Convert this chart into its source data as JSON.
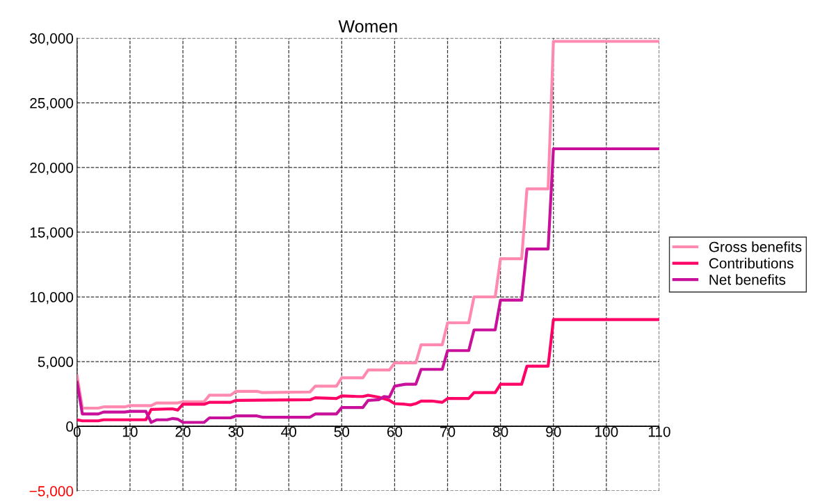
{
  "chart_data": {
    "type": "line",
    "title": "Women",
    "xlim": [
      0,
      110
    ],
    "xticks": [
      0,
      10,
      20,
      30,
      40,
      50,
      60,
      70,
      80,
      90,
      100,
      110
    ],
    "ylim": [
      -5000,
      30000
    ],
    "yticks": [
      {
        "value": -5000,
        "label": "−5,000"
      },
      {
        "value": 0,
        "label": "0"
      },
      {
        "value": 5000,
        "label": "5,000"
      },
      {
        "value": 10000,
        "label": "10,000"
      },
      {
        "value": 15000,
        "label": "15,000"
      },
      {
        "value": 20000,
        "label": "20,000"
      },
      {
        "value": 25000,
        "label": "25,000"
      },
      {
        "value": 30000,
        "label": "30,000"
      }
    ],
    "grid": true,
    "legend": "right",
    "marker": "none",
    "line_style": "solid",
    "series": [
      {
        "name": "Gross benefits",
        "color": "#ff8ab0",
        "x": [
          0,
          1,
          4,
          5,
          9,
          10,
          14,
          15,
          19,
          20,
          24,
          25,
          29,
          30,
          34,
          35,
          44,
          45,
          49,
          50,
          54,
          55,
          59,
          60,
          64,
          65,
          69,
          70,
          74,
          75,
          79,
          80,
          84,
          85,
          89,
          90,
          110
        ],
        "values": [
          3900,
          1400,
          1400,
          1500,
          1500,
          1600,
          1600,
          1800,
          1800,
          1900,
          1900,
          2400,
          2400,
          2700,
          2700,
          2600,
          2650,
          3100,
          3100,
          3750,
          3750,
          4350,
          4350,
          4900,
          4900,
          6300,
          6300,
          8000,
          8000,
          10000,
          10000,
          12950,
          12950,
          18350,
          18350,
          29750,
          29750
        ]
      },
      {
        "name": "Contributions",
        "color": "#ff0066",
        "x": [
          0,
          1,
          4,
          5,
          13,
          14,
          18,
          19,
          20,
          24,
          25,
          29,
          30,
          44,
          45,
          49,
          50,
          53,
          54,
          55,
          57,
          59,
          60,
          62,
          63,
          64,
          65,
          67,
          69,
          70,
          74,
          75,
          79,
          80,
          84,
          85,
          89,
          90,
          110
        ],
        "values": [
          500,
          420,
          420,
          500,
          500,
          1300,
          1350,
          1250,
          1700,
          1700,
          1850,
          1850,
          2000,
          2050,
          2200,
          2150,
          2350,
          2300,
          2300,
          2400,
          2250,
          2000,
          1750,
          1700,
          1650,
          1750,
          1950,
          1950,
          1850,
          2150,
          2150,
          2600,
          2600,
          3250,
          3250,
          4650,
          4650,
          8250,
          8250
        ]
      },
      {
        "name": "Net benefits",
        "color": "#c8109a",
        "x": [
          0,
          1,
          4,
          5,
          9,
          10,
          13,
          14,
          15,
          17,
          18,
          19,
          20,
          24,
          25,
          29,
          30,
          34,
          35,
          44,
          45,
          49,
          50,
          54,
          55,
          57,
          58,
          59,
          60,
          62,
          64,
          65,
          69,
          70,
          74,
          75,
          79,
          80,
          84,
          85,
          89,
          90,
          110
        ],
        "values": [
          3400,
          950,
          950,
          1100,
          1100,
          1150,
          1150,
          300,
          500,
          500,
          600,
          550,
          300,
          300,
          650,
          650,
          800,
          800,
          700,
          700,
          950,
          950,
          1450,
          1450,
          2000,
          2050,
          2300,
          2250,
          3100,
          3250,
          3250,
          4400,
          4400,
          5850,
          5850,
          7450,
          7450,
          9750,
          9750,
          13700,
          13700,
          21450,
          21450
        ]
      }
    ]
  }
}
